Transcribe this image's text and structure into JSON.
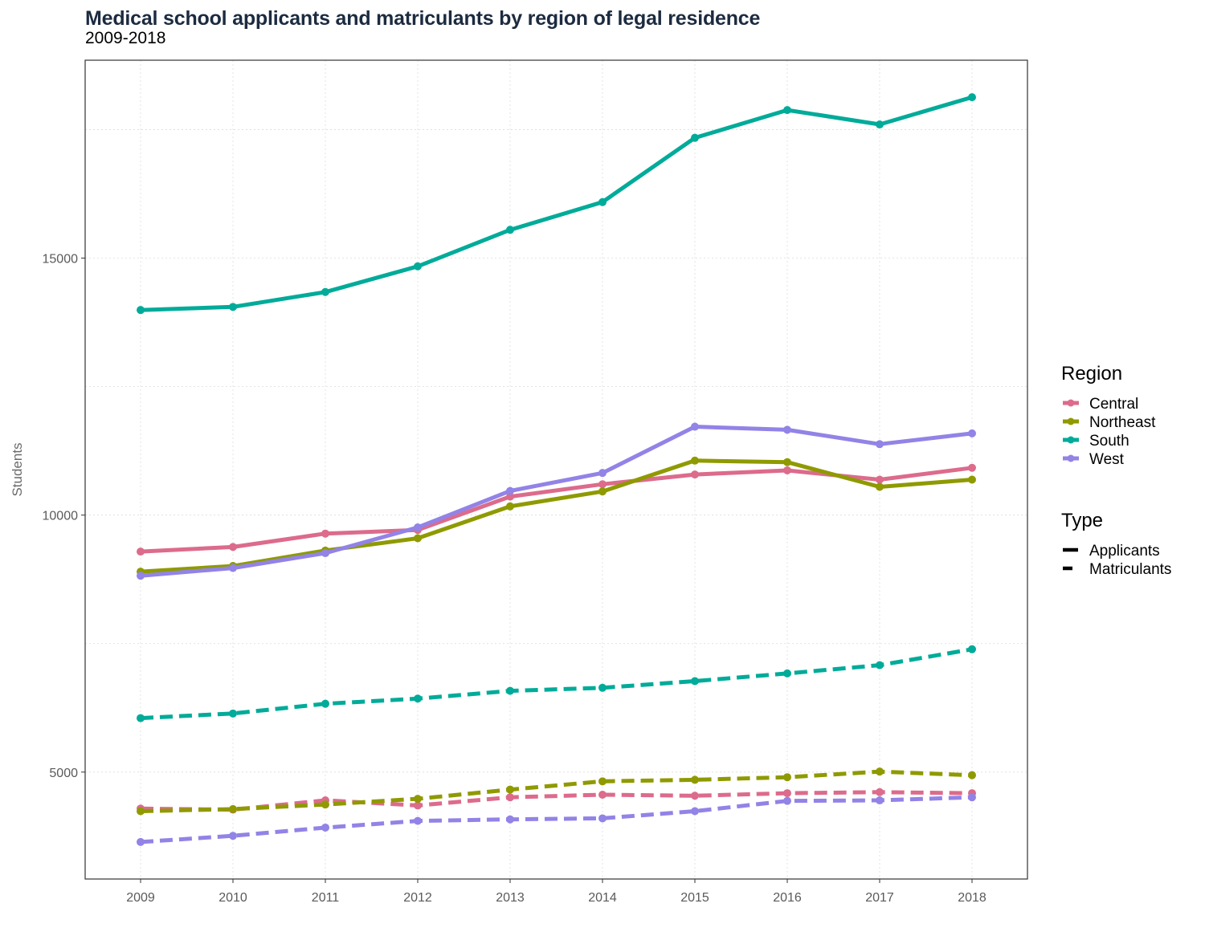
{
  "chart_data": {
    "type": "line",
    "title": "Medical school applicants and matriculants by region of legal residence",
    "subtitle": "2009-2018",
    "xlabel": "",
    "ylabel": "Students",
    "x": [
      2009,
      2010,
      2011,
      2012,
      2013,
      2014,
      2015,
      2016,
      2017,
      2018
    ],
    "xlim": [
      2008.4,
      2018.6
    ],
    "ylim": [
      2920,
      18850
    ],
    "y_ticks": [
      5000,
      10000,
      15000
    ],
    "grid": true,
    "legend_position": "right",
    "legends": [
      {
        "title": "Region",
        "entries": [
          {
            "label": "Central",
            "color": "#dc6b8c"
          },
          {
            "label": "Northeast",
            "color": "#8f9a00"
          },
          {
            "label": "South",
            "color": "#00ab99"
          },
          {
            "label": "West",
            "color": "#9283e6"
          }
        ]
      },
      {
        "title": "Type",
        "entries": [
          {
            "label": "Applicants",
            "linestyle": "solid"
          },
          {
            "label": "Matriculants",
            "linestyle": "dashed"
          }
        ]
      }
    ],
    "series": [
      {
        "region": "Central",
        "type": "Applicants",
        "color": "#dc6b8c",
        "linestyle": "solid",
        "values": [
          9290,
          9380,
          9640,
          9710,
          10360,
          10600,
          10790,
          10870,
          10690,
          10920
        ]
      },
      {
        "region": "Northeast",
        "type": "Applicants",
        "color": "#8f9a00",
        "linestyle": "solid",
        "values": [
          8900,
          9010,
          9310,
          9550,
          10170,
          10460,
          11060,
          11030,
          10550,
          10690
        ]
      },
      {
        "region": "South",
        "type": "Applicants",
        "color": "#00ab99",
        "linestyle": "solid",
        "values": [
          13990,
          14050,
          14340,
          14840,
          15550,
          16090,
          17340,
          17880,
          17600,
          18130
        ]
      },
      {
        "region": "West",
        "type": "Applicants",
        "color": "#9283e6",
        "linestyle": "solid",
        "values": [
          8820,
          8970,
          9260,
          9760,
          10470,
          10820,
          11720,
          11660,
          11380,
          11590
        ]
      },
      {
        "region": "Central",
        "type": "Matriculants",
        "color": "#dc6b8c",
        "linestyle": "dashed",
        "values": [
          4290,
          4270,
          4450,
          4350,
          4510,
          4560,
          4540,
          4590,
          4610,
          4590
        ]
      },
      {
        "region": "Northeast",
        "type": "Matriculants",
        "color": "#8f9a00",
        "linestyle": "dashed",
        "values": [
          4240,
          4280,
          4370,
          4480,
          4660,
          4820,
          4850,
          4900,
          5010,
          4940
        ]
      },
      {
        "region": "South",
        "type": "Matriculants",
        "color": "#00ab99",
        "linestyle": "dashed",
        "values": [
          6050,
          6140,
          6330,
          6430,
          6580,
          6640,
          6770,
          6920,
          7080,
          7390
        ]
      },
      {
        "region": "West",
        "type": "Matriculants",
        "color": "#9283e6",
        "linestyle": "dashed",
        "values": [
          3640,
          3760,
          3920,
          4050,
          4080,
          4100,
          4240,
          4440,
          4450,
          4510
        ]
      }
    ]
  }
}
